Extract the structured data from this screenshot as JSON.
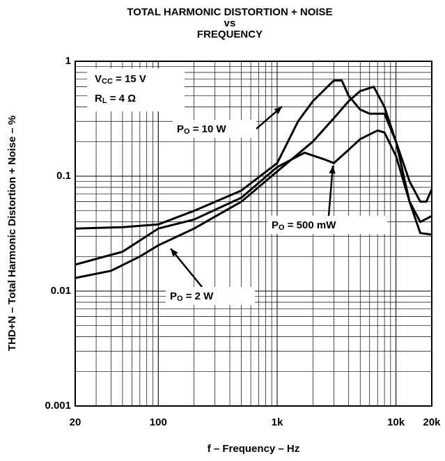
{
  "chart_data": {
    "type": "line",
    "title": [
      "TOTAL HARMONIC DISTORTION + NOISE",
      "vs",
      "FREQUENCY"
    ],
    "xlabel": "f – Frequency – Hz",
    "ylabel": "THD+N – Total Harmonic Distortion + Noise – %",
    "xscale": "log",
    "yscale": "log",
    "grid": true,
    "xlim": [
      20,
      20000
    ],
    "ylim": [
      0.001,
      1
    ],
    "xticks": [
      20,
      100,
      {
        "value": 1000,
        "label": "1k"
      },
      {
        "value": 10000,
        "label": "10k"
      },
      {
        "value": 20000,
        "label": "20k"
      }
    ],
    "yticks": [
      0.001,
      0.01,
      0.1,
      1
    ],
    "conditions": [
      {
        "base": "V",
        "sub": "CC",
        "text": " = 15 V"
      },
      {
        "base": "R",
        "sub": "L",
        "text": " = 4 Ω"
      }
    ],
    "series": [
      {
        "label": {
          "base": "P",
          "sub": "O",
          "text": " = 10 W"
        },
        "color": "#000000",
        "x": [
          20,
          50,
          100,
          200,
          500,
          1000,
          1500,
          2000,
          3000,
          3500,
          4000,
          5000,
          6000,
          8000,
          10000,
          13000,
          16000,
          18000,
          20000
        ],
        "values": [
          0.035,
          0.036,
          0.038,
          0.05,
          0.075,
          0.13,
          0.3,
          0.45,
          0.68,
          0.68,
          0.5,
          0.38,
          0.35,
          0.35,
          0.2,
          0.09,
          0.06,
          0.06,
          0.077
        ]
      },
      {
        "label": {
          "base": "P",
          "sub": "O",
          "text": " = 500 mW"
        },
        "color": "#000000",
        "x": [
          20,
          50,
          100,
          200,
          500,
          1000,
          1700,
          2500,
          3000,
          4000,
          5000,
          7000,
          8000,
          10000,
          13000,
          16000,
          20000
        ],
        "values": [
          0.017,
          0.022,
          0.035,
          0.042,
          0.065,
          0.12,
          0.16,
          0.14,
          0.13,
          0.17,
          0.21,
          0.25,
          0.24,
          0.15,
          0.06,
          0.04,
          0.045
        ]
      },
      {
        "label": {
          "base": "P",
          "sub": "O",
          "text": " = 2 W"
        },
        "color": "#000000",
        "x": [
          20,
          40,
          70,
          100,
          200,
          500,
          1000,
          2000,
          3000,
          4000,
          5000,
          6500,
          8000,
          10000,
          13000,
          16000,
          20000
        ],
        "values": [
          0.013,
          0.015,
          0.02,
          0.025,
          0.035,
          0.06,
          0.11,
          0.2,
          0.32,
          0.45,
          0.55,
          0.6,
          0.4,
          0.2,
          0.06,
          0.032,
          0.031
        ]
      }
    ]
  }
}
